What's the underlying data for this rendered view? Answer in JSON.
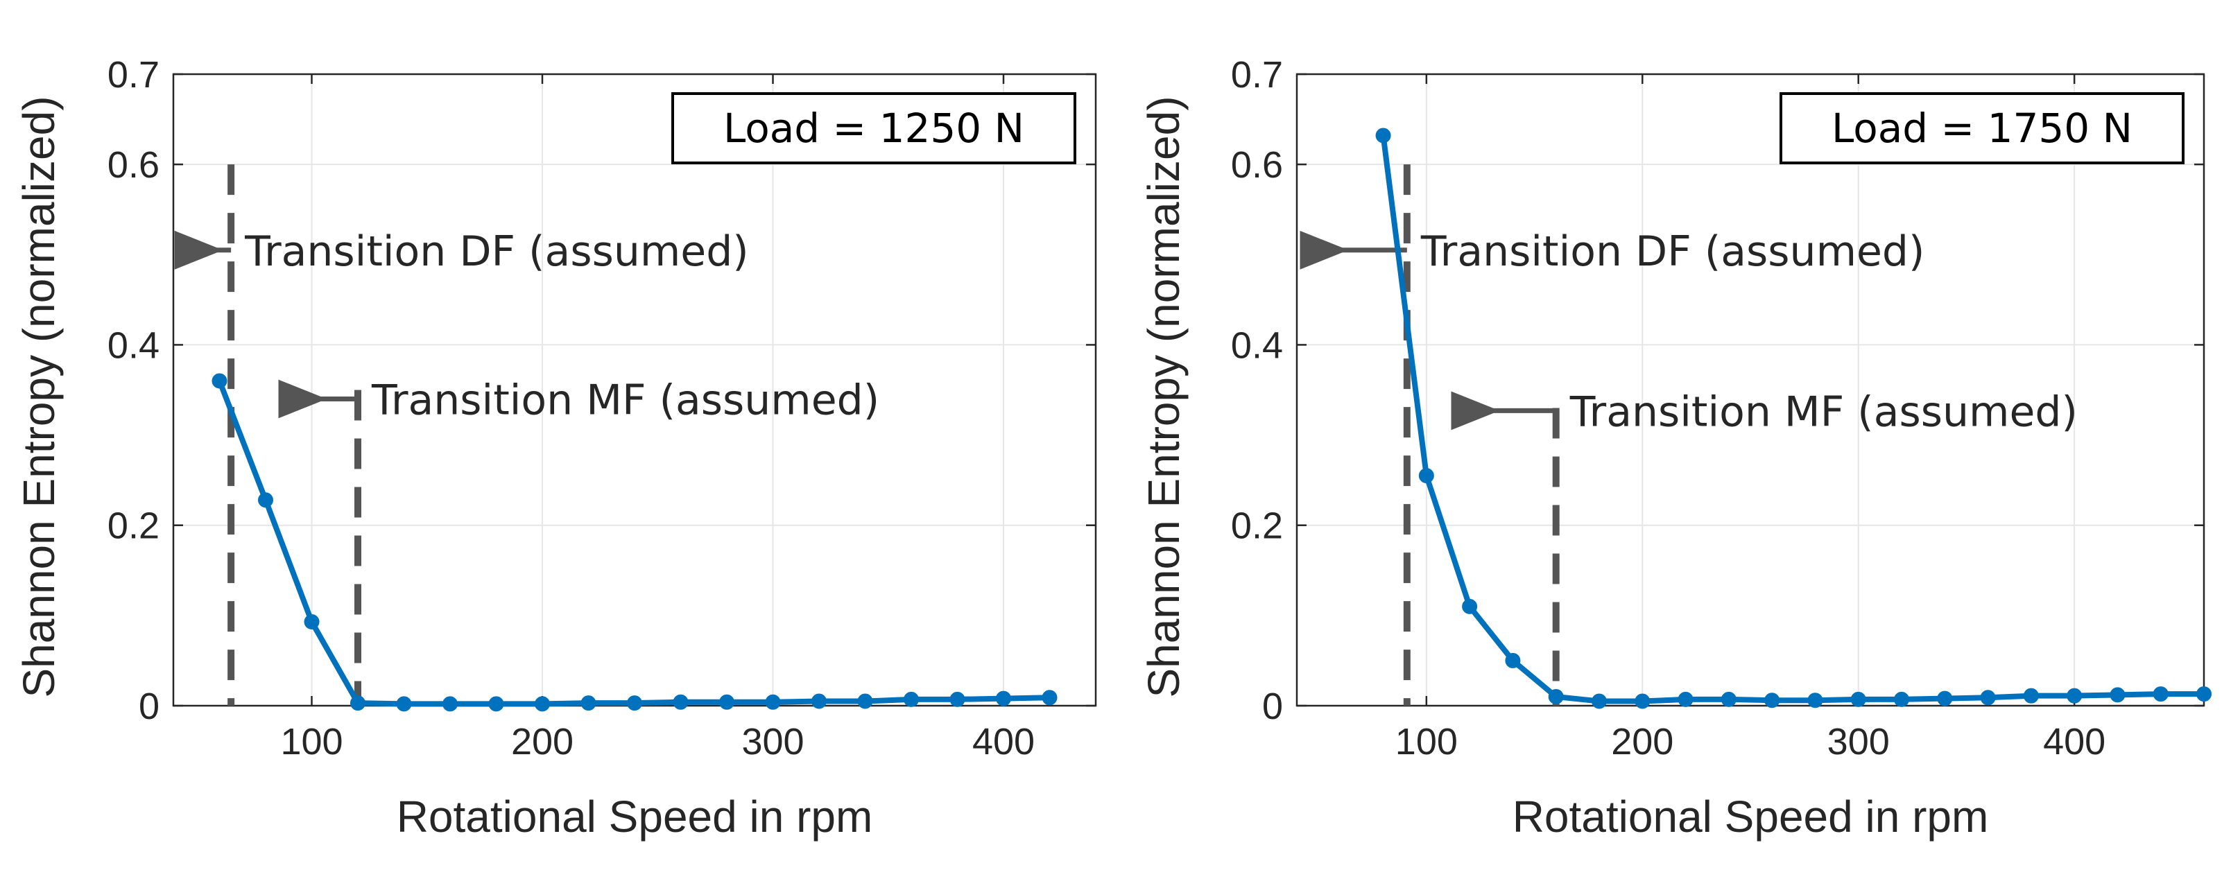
{
  "colors": {
    "series": "#0072bd",
    "marker": "#0072bd",
    "grid": "#e6e6e6",
    "axis": "#262626",
    "annotation": "#555555",
    "text": "#262626"
  },
  "chart_data": [
    {
      "type": "line",
      "legend_box": "Load = 1250 N",
      "legend_position": "top-right",
      "xlabel": "Rotational Speed in rpm",
      "ylabel": "Shannon Entropy (normalized)",
      "xlim": [
        40,
        440
      ],
      "ylim": [
        0,
        0.7
      ],
      "xticks": [
        100,
        200,
        300,
        400
      ],
      "xtick_labels": [
        "100",
        "200",
        "300",
        "400"
      ],
      "yticks": [
        0,
        0.2,
        0.4,
        0.6,
        0.7
      ],
      "ytick_labels": [
        "0",
        "0.2",
        "0.4",
        "0.6",
        "0.7"
      ],
      "grid": true,
      "x": [
        60,
        80,
        100,
        120,
        140,
        160,
        180,
        200,
        220,
        240,
        260,
        280,
        300,
        320,
        340,
        360,
        380,
        400,
        420
      ],
      "y": [
        0.36,
        0.228,
        0.093,
        0.003,
        0.002,
        0.002,
        0.002,
        0.002,
        0.003,
        0.003,
        0.004,
        0.004,
        0.004,
        0.005,
        0.005,
        0.007,
        0.007,
        0.008,
        0.009
      ],
      "annotations": [
        {
          "label": "Transition DF (assumed)",
          "x": 65,
          "y_top": 0.6,
          "arrow_y": 0.505,
          "arrow_from": 65,
          "arrow_to": 42
        },
        {
          "label": "Transition MF (assumed)",
          "x": 120,
          "y_top": 0.35,
          "arrow_y": 0.34,
          "arrow_from": 120,
          "arrow_to": 87
        }
      ]
    },
    {
      "type": "line",
      "legend_box": "Load = 1750 N",
      "legend_position": "top-right",
      "xlabel": "Rotational Speed in rpm",
      "ylabel": "Shannon Entropy (normalized)",
      "xlim": [
        40,
        460
      ],
      "ylim": [
        0,
        0.7
      ],
      "xticks": [
        100,
        200,
        300,
        400
      ],
      "xtick_labels": [
        "100",
        "200",
        "300",
        "400"
      ],
      "yticks": [
        0,
        0.2,
        0.4,
        0.6,
        0.7
      ],
      "ytick_labels": [
        "0",
        "0.2",
        "0.4",
        "0.6",
        "0.7"
      ],
      "grid": true,
      "x": [
        80,
        100,
        120,
        140,
        160,
        180,
        200,
        220,
        240,
        260,
        280,
        300,
        320,
        340,
        360,
        380,
        400,
        420,
        440,
        460
      ],
      "y": [
        0.632,
        0.255,
        0.11,
        0.05,
        0.01,
        0.005,
        0.005,
        0.007,
        0.007,
        0.006,
        0.006,
        0.007,
        0.007,
        0.008,
        0.009,
        0.011,
        0.011,
        0.012,
        0.013,
        0.013
      ],
      "annotations": [
        {
          "label": "Transition DF (assumed)",
          "x": 91,
          "y_top": 0.6,
          "arrow_y": 0.505,
          "arrow_from": 91,
          "arrow_to": 43
        },
        {
          "label": "Transition MF (assumed)",
          "x": 160,
          "y_top": 0.33,
          "arrow_y": 0.327,
          "arrow_from": 160,
          "arrow_to": 113
        }
      ]
    }
  ]
}
